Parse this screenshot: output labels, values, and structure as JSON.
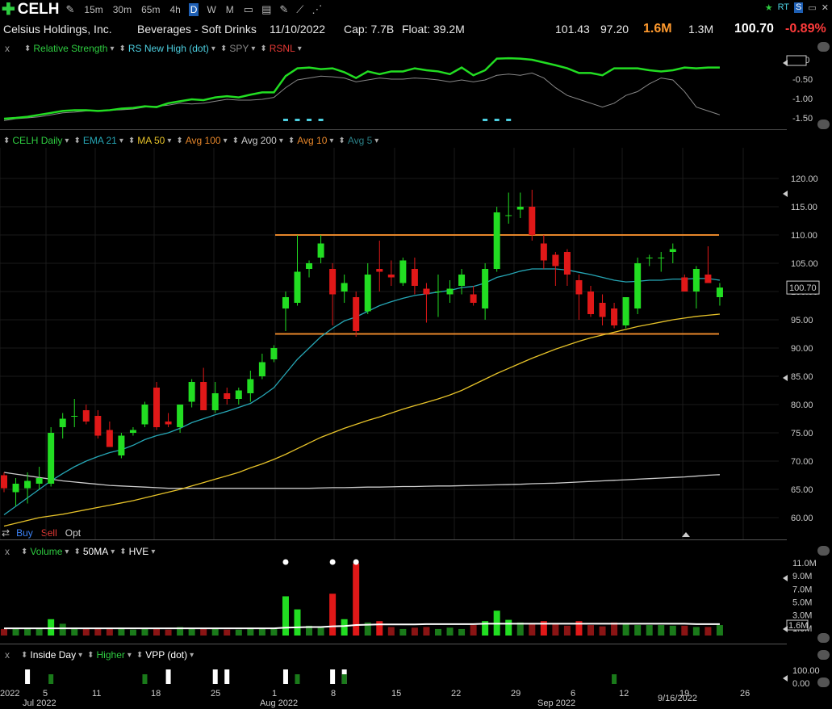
{
  "toolbar": {
    "ticker": "CELH",
    "timeframes": [
      "15m",
      "30m",
      "65m",
      "4h",
      "D",
      "W",
      "M"
    ],
    "active_timeframe": "D",
    "right_icons": [
      "star-icon",
      "rt-icon",
      "s-icon",
      "window-icon",
      "close-icon"
    ],
    "rt_label": "RT",
    "s_label": "S"
  },
  "info": {
    "company": "Celsius Holdings, Inc.",
    "industry": "Beverages - Soft Drinks",
    "date": "11/10/2022",
    "cap": "Cap: 7.7B",
    "float": "Float: 39.2M",
    "high": "101.43",
    "low": "97.20",
    "volume": "1.6M",
    "avg_volume": "1.3M",
    "price": "100.70",
    "change": "-0.89%"
  },
  "rs_panel": {
    "close": "x",
    "items": [
      {
        "label": "Relative Strength",
        "color": "#2ecc40"
      },
      {
        "label": "RS New High (dot)",
        "color": "#4dd0e1"
      },
      {
        "label": "SPY",
        "color": "#888888"
      },
      {
        "label": "RSNL",
        "color": "#e53935"
      }
    ],
    "axis": [
      "0.00",
      "-0.50",
      "-1.00",
      "-1.50"
    ],
    "current": "0.00"
  },
  "price_panel": {
    "items": [
      {
        "label": "CELH Daily",
        "color": "#2ecc40"
      },
      {
        "label": "EMA 21",
        "color": "#26a6b5"
      },
      {
        "label": "MA 50",
        "color": "#e6c229"
      },
      {
        "label": "Avg 100",
        "color": "#e6862a"
      },
      {
        "label": "Avg 200",
        "color": "#cccccc"
      },
      {
        "label": "Avg 10",
        "color": "#e6862a"
      },
      {
        "label": "Avg 5",
        "color": "#2a7f86"
      }
    ],
    "axis": [
      "120.00",
      "115.00",
      "110.00",
      "105.00",
      "100.00",
      "95.00",
      "90.00",
      "85.00",
      "80.00",
      "75.00",
      "70.00",
      "65.00",
      "60.00"
    ],
    "current_price": "100.70",
    "buy": "Buy",
    "sell": "Sell",
    "opt": "Opt"
  },
  "volume_panel": {
    "close": "x",
    "items": [
      {
        "label": "Volume",
        "color": "#2ecc40"
      },
      {
        "label": "50MA",
        "color": "#ffffff"
      },
      {
        "label": "HVE",
        "color": "#ffffff"
      }
    ],
    "axis": [
      "11.0M",
      "9.0M",
      "7.0M",
      "5.0M",
      "3.0M",
      "1.0M"
    ],
    "current": "1.6M"
  },
  "inside_panel": {
    "close": "x",
    "items": [
      {
        "label": "Inside Day",
        "color": "#ffffff"
      },
      {
        "label": "Higher",
        "color": "#2ecc40"
      },
      {
        "label": "VPP (dot)",
        "color": "#ffffff"
      }
    ],
    "axis": [
      "100.00",
      "0.00"
    ]
  },
  "x_axis": {
    "labels": [
      "2022",
      "5",
      "11",
      "18",
      "25",
      "1",
      "8",
      "15",
      "22",
      "29",
      "6",
      "12",
      "19",
      "26"
    ],
    "month_labels": [
      "Jul 2022",
      "Aug 2022",
      "Sep 2022"
    ],
    "cursor_date": "9/16/2022"
  },
  "chart_data": {
    "type": "candlestick",
    "title": "CELH Daily",
    "y_range": [
      58,
      123
    ],
    "levels": {
      "resistance": 110.0,
      "support": 92.5
    },
    "candles": [
      {
        "o": 67.5,
        "h": 68,
        "l": 64.5,
        "c": 65.2
      },
      {
        "o": 64.5,
        "h": 67,
        "l": 62,
        "c": 66
      },
      {
        "o": 65.2,
        "h": 68,
        "l": 62.5,
        "c": 66.5
      },
      {
        "o": 66,
        "h": 69,
        "l": 65,
        "c": 67
      },
      {
        "o": 66,
        "h": 76,
        "l": 65.5,
        "c": 75
      },
      {
        "o": 76,
        "h": 78.5,
        "l": 74,
        "c": 77.5
      },
      {
        "o": 78,
        "h": 81,
        "l": 76,
        "c": 78
      },
      {
        "o": 79,
        "h": 80,
        "l": 76.5,
        "c": 77
      },
      {
        "o": 78,
        "h": 79,
        "l": 74,
        "c": 74.5
      },
      {
        "o": 75.5,
        "h": 77,
        "l": 72.5,
        "c": 72.5
      },
      {
        "o": 71,
        "h": 75,
        "l": 70.5,
        "c": 74.5
      },
      {
        "o": 75,
        "h": 76,
        "l": 74.5,
        "c": 75.5
      },
      {
        "o": 76.5,
        "h": 80.5,
        "l": 76,
        "c": 80
      },
      {
        "o": 83,
        "h": 84,
        "l": 75.5,
        "c": 76
      },
      {
        "o": 77,
        "h": 78.5,
        "l": 76,
        "c": 76.5
      },
      {
        "o": 76,
        "h": 80,
        "l": 75,
        "c": 80
      },
      {
        "o": 80.5,
        "h": 84.5,
        "l": 79.5,
        "c": 84
      },
      {
        "o": 84,
        "h": 86.5,
        "l": 79,
        "c": 79
      },
      {
        "o": 79,
        "h": 84,
        "l": 78.5,
        "c": 82
      },
      {
        "o": 82,
        "h": 83,
        "l": 80,
        "c": 81
      },
      {
        "o": 81,
        "h": 83,
        "l": 80,
        "c": 82.5
      },
      {
        "o": 82,
        "h": 86,
        "l": 80.5,
        "c": 84.5
      },
      {
        "o": 85,
        "h": 89,
        "l": 84.5,
        "c": 87.5
      },
      {
        "o": 88,
        "h": 90.5,
        "l": 87.5,
        "c": 90
      },
      {
        "o": 97,
        "h": 100,
        "l": 93,
        "c": 99
      },
      {
        "o": 98,
        "h": 110,
        "l": 97.5,
        "c": 103.5
      },
      {
        "o": 104,
        "h": 105.5,
        "l": 102.5,
        "c": 105
      },
      {
        "o": 106,
        "h": 110,
        "l": 105,
        "c": 108.5
      },
      {
        "o": 104,
        "h": 105,
        "l": 94,
        "c": 99.5
      },
      {
        "o": 100,
        "h": 103,
        "l": 98,
        "c": 101.5
      },
      {
        "o": 99,
        "h": 100,
        "l": 92,
        "c": 93
      },
      {
        "o": 96.5,
        "h": 105,
        "l": 96,
        "c": 103
      },
      {
        "o": 104,
        "h": 109,
        "l": 100,
        "c": 103.5
      },
      {
        "o": 103,
        "h": 105.5,
        "l": 101,
        "c": 102.5
      },
      {
        "o": 101.5,
        "h": 106,
        "l": 101,
        "c": 105.5
      },
      {
        "o": 104,
        "h": 106,
        "l": 99.5,
        "c": 101
      },
      {
        "o": 100.5,
        "h": 101.5,
        "l": 94.5,
        "c": 99.5
      },
      {
        "o": 100,
        "h": 103,
        "l": 95.5,
        "c": 100
      },
      {
        "o": 99.5,
        "h": 102,
        "l": 98,
        "c": 100.5
      },
      {
        "o": 101,
        "h": 104,
        "l": 99.5,
        "c": 103
      },
      {
        "o": 99.5,
        "h": 101,
        "l": 97.5,
        "c": 98
      },
      {
        "o": 97,
        "h": 105,
        "l": 95,
        "c": 104
      },
      {
        "o": 104,
        "h": 115,
        "l": 103.5,
        "c": 114
      },
      {
        "o": 113.5,
        "h": 117.5,
        "l": 112,
        "c": 113.5
      },
      {
        "o": 114.5,
        "h": 117.5,
        "l": 113,
        "c": 115
      },
      {
        "o": 115,
        "h": 118,
        "l": 109,
        "c": 110
      },
      {
        "o": 108.5,
        "h": 110,
        "l": 104,
        "c": 105.5
      },
      {
        "o": 106.5,
        "h": 107,
        "l": 101,
        "c": 104.5
      },
      {
        "o": 107,
        "h": 107.5,
        "l": 101,
        "c": 103
      },
      {
        "o": 102,
        "h": 103,
        "l": 95,
        "c": 99.5
      },
      {
        "o": 100,
        "h": 101,
        "l": 95.5,
        "c": 96
      },
      {
        "o": 98,
        "h": 99.5,
        "l": 94,
        "c": 95.5
      },
      {
        "o": 97,
        "h": 98,
        "l": 93.5,
        "c": 94
      },
      {
        "o": 94,
        "h": 99,
        "l": 93.5,
        "c": 99
      },
      {
        "o": 97,
        "h": 106,
        "l": 96,
        "c": 105
      },
      {
        "o": 106,
        "h": 106.5,
        "l": 104.5,
        "c": 106
      },
      {
        "o": 106,
        "h": 107,
        "l": 103.5,
        "c": 106
      },
      {
        "o": 107,
        "h": 108.5,
        "l": 105,
        "c": 107.5
      },
      {
        "o": 102.5,
        "h": 103,
        "l": 100,
        "c": 100
      },
      {
        "o": 100,
        "h": 104.5,
        "l": 97,
        "c": 104
      },
      {
        "o": 103,
        "h": 108,
        "l": 102,
        "c": 101.5
      },
      {
        "o": 99,
        "h": 101.5,
        "l": 97.5,
        "c": 100.7
      }
    ],
    "ema21": [
      60.5,
      62,
      63.5,
      65,
      66.5,
      67.8,
      69,
      70,
      70.8,
      71.5,
      72,
      72.8,
      73.8,
      74.5,
      75,
      75.8,
      76.8,
      77.5,
      78.2,
      78.8,
      79.5,
      80.2,
      81.5,
      83,
      85.5,
      88,
      90,
      92,
      93.5,
      94.8,
      95.5,
      96.5,
      97.5,
      98.2,
      98.8,
      99.3,
      99.6,
      99.9,
      100.2,
      100.7,
      100.9,
      101.5,
      102.5,
      103,
      103.6,
      104,
      104,
      104,
      103.8,
      103.4,
      103,
      102.5,
      102,
      101.7,
      101.8,
      102,
      102,
      102.2,
      102.2,
      102.3,
      102.3,
      102
    ],
    "ma50": [
      58.5,
      59,
      59.5,
      60,
      60.3,
      60.6,
      61,
      61.4,
      61.8,
      62.2,
      62.6,
      63,
      63.5,
      64,
      64.5,
      65,
      65.6,
      66.2,
      66.8,
      67.4,
      68,
      68.8,
      69.5,
      70.3,
      71.2,
      72.2,
      73.2,
      74.2,
      75,
      75.8,
      76.5,
      77.2,
      77.8,
      78.5,
      79.2,
      79.8,
      80.4,
      81,
      81.7,
      82.5,
      83.5,
      84.5,
      85.5,
      86.4,
      87.3,
      88.2,
      89,
      89.8,
      90.5,
      91.2,
      91.8,
      92.3,
      92.8,
      93.3,
      93.8,
      94.2,
      94.6,
      95,
      95.3,
      95.6,
      95.8,
      96
    ],
    "ma200": [
      68,
      67.7,
      67.4,
      67.1,
      66.8,
      66.5,
      66.3,
      66.1,
      65.9,
      65.7,
      65.6,
      65.5,
      65.4,
      65.3,
      65.2,
      65.2,
      65.2,
      65.2,
      65.2,
      65.2,
      65.2,
      65.2,
      65.2,
      65.2,
      65.2,
      65.2,
      65.2,
      65.25,
      65.3,
      65.3,
      65.35,
      65.4,
      65.4,
      65.45,
      65.5,
      65.5,
      65.55,
      65.6,
      65.6,
      65.65,
      65.7,
      65.75,
      65.8,
      65.85,
      65.9,
      66,
      66.05,
      66.1,
      66.2,
      66.3,
      66.4,
      66.5,
      66.6,
      66.7,
      66.8,
      66.9,
      67,
      67.1,
      67.2,
      67.35,
      67.5,
      67.6
    ],
    "rs_line": [
      -1.5,
      -1.48,
      -1.45,
      -1.4,
      -1.35,
      -1.3,
      -1.28,
      -1.28,
      -1.3,
      -1.28,
      -1.24,
      -1.22,
      -1.18,
      -1.2,
      -1.1,
      -1.05,
      -1.0,
      -1.02,
      -0.95,
      -0.92,
      -0.95,
      -0.88,
      -0.82,
      -0.82,
      -0.4,
      -0.2,
      -0.18,
      -0.22,
      -0.2,
      -0.3,
      -0.45,
      -0.28,
      -0.35,
      -0.28,
      -0.28,
      -0.2,
      -0.25,
      -0.28,
      -0.35,
      -0.18,
      -0.38,
      -0.25,
      0.05,
      0.06,
      0.05,
      0.02,
      -0.05,
      -0.12,
      -0.2,
      -0.32,
      -0.32,
      -0.38,
      -0.2,
      -0.2,
      -0.2,
      -0.25,
      -0.28,
      -0.25,
      -0.18,
      -0.2,
      -0.18,
      -0.18
    ],
    "spy_line": [
      -1.55,
      -1.5,
      -1.48,
      -1.45,
      -1.4,
      -1.35,
      -1.33,
      -1.3,
      -1.3,
      -1.28,
      -1.27,
      -1.25,
      -1.2,
      -1.18,
      -1.15,
      -1.1,
      -1.12,
      -1.1,
      -1.05,
      -1.0,
      -1.02,
      -1.02,
      -1.0,
      -0.95,
      -0.7,
      -0.5,
      -0.45,
      -0.4,
      -0.42,
      -0.45,
      -0.55,
      -0.5,
      -0.45,
      -0.48,
      -0.48,
      -0.45,
      -0.47,
      -0.5,
      -0.55,
      -0.5,
      -0.55,
      -0.5,
      -0.38,
      -0.35,
      -0.38,
      -0.32,
      -0.45,
      -0.7,
      -0.9,
      -1.0,
      -1.1,
      -1.2,
      -1.1,
      -0.9,
      -0.8,
      -0.6,
      -0.45,
      -0.5,
      -0.8,
      -1.2,
      -1.3,
      -1.4
    ],
    "rs_new_high_dots": [
      24,
      25,
      26,
      27,
      41,
      42,
      43
    ],
    "volume_millions": [
      1.0,
      1.0,
      1.0,
      1.0,
      2.5,
      1.8,
      1.2,
      1.0,
      1.1,
      1.0,
      1.2,
      0.9,
      1.0,
      1.0,
      0.9,
      1.3,
      1.0,
      1.1,
      1.0,
      0.9,
      0.9,
      1.2,
      1.1,
      1.1,
      6.0,
      4.0,
      1.5,
      1.3,
      6.4,
      2.5,
      11.0,
      2.0,
      2.2,
      1.3,
      1.0,
      1.2,
      1.3,
      1.0,
      1.2,
      1.0,
      1.6,
      2.2,
      3.8,
      2.4,
      2.0,
      1.8,
      2.2,
      1.9,
      1.5,
      2.2,
      1.6,
      1.4,
      2.0,
      1.8,
      1.6,
      1.6,
      1.6,
      1.5,
      1.5,
      1.3,
      1.3,
      1.6
    ],
    "volume_50ma_millions": [
      1.1,
      1.1,
      1.1,
      1.1,
      1.1,
      1.1,
      1.1,
      1.1,
      1.1,
      1.1,
      1.1,
      1.1,
      1.1,
      1.1,
      1.1,
      1.1,
      1.1,
      1.1,
      1.1,
      1.1,
      1.1,
      1.1,
      1.1,
      1.1,
      1.2,
      1.25,
      1.3,
      1.3,
      1.4,
      1.45,
      1.6,
      1.65,
      1.7,
      1.7,
      1.7,
      1.7,
      1.75,
      1.75,
      1.75,
      1.75,
      1.75,
      1.8,
      1.8,
      1.8,
      1.8,
      1.8,
      1.8,
      1.8,
      1.8,
      1.8,
      1.8,
      1.8,
      1.8,
      1.8,
      1.8,
      1.8,
      1.8,
      1.8,
      1.8,
      1.75,
      1.75,
      1.75
    ],
    "hve_dots": [
      24,
      28,
      30
    ],
    "inside_day_bars": [
      2,
      14,
      18,
      19,
      24,
      28,
      29
    ],
    "higher_bars": [
      4,
      12,
      25,
      29,
      52
    ]
  }
}
